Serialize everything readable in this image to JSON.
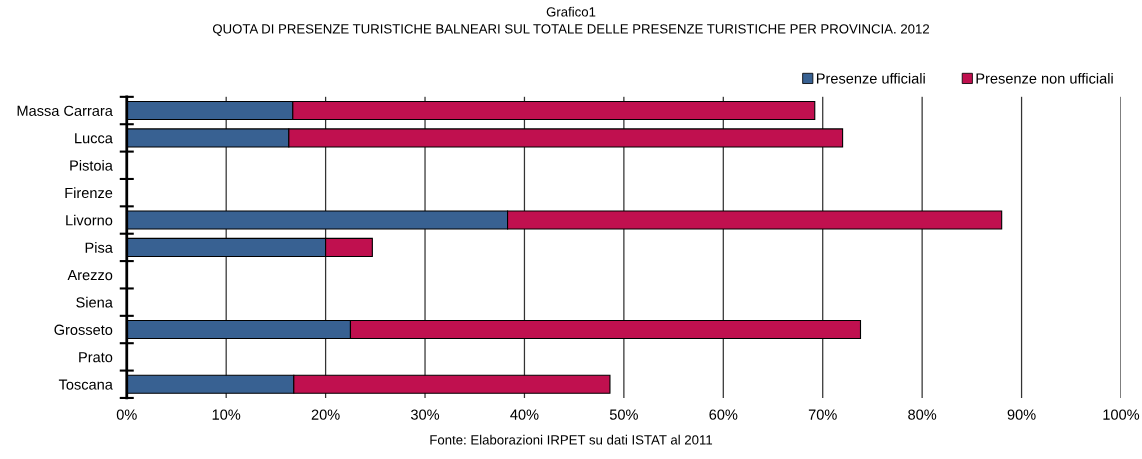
{
  "chart_data": {
    "type": "bar",
    "orientation": "horizontal",
    "stacked": true,
    "title": "Grafico1",
    "subtitle": "QUOTA DI PRESENZE TURISTICHE BALNEARI SUL TOTALE DELLE PRESENZE TURISTICHE PER PROVINCIA. 2012",
    "annotations": [
      "Fonte: Elaborazioni IRPET su dati ISTAT al 2011"
    ],
    "categories": [
      "Massa Carrara",
      "Lucca",
      "Pistoia",
      "Firenze",
      "Livorno",
      "Pisa",
      "Arezzo",
      "Siena",
      "Grosseto",
      "Prato",
      "Toscana"
    ],
    "series": [
      {
        "name": "Presenze ufficiali",
        "color": "#386192",
        "values": [
          16.7,
          16.3,
          null,
          null,
          38.3,
          20.0,
          null,
          null,
          22.5,
          null,
          16.8
        ]
      },
      {
        "name": "Presenze non ufficiali",
        "color": "#c0104f",
        "values": [
          52.5,
          55.7,
          null,
          null,
          49.7,
          4.7,
          null,
          null,
          51.3,
          null,
          31.8
        ]
      }
    ],
    "xlim": [
      0,
      100
    ],
    "xticks": [
      {
        "value": 0,
        "label": "0%"
      },
      {
        "value": 10,
        "label": "10%"
      },
      {
        "value": 20,
        "label": "20%"
      },
      {
        "value": 30,
        "label": "30%"
      },
      {
        "value": 40,
        "label": "40%"
      },
      {
        "value": 50,
        "label": "50%"
      },
      {
        "value": 60,
        "label": "60%"
      },
      {
        "value": 70,
        "label": "70%"
      },
      {
        "value": 80,
        "label": "80%"
      },
      {
        "value": 90,
        "label": "90%"
      },
      {
        "value": 100,
        "label": "100%"
      }
    ],
    "grid": "x",
    "legend": "top right"
  }
}
